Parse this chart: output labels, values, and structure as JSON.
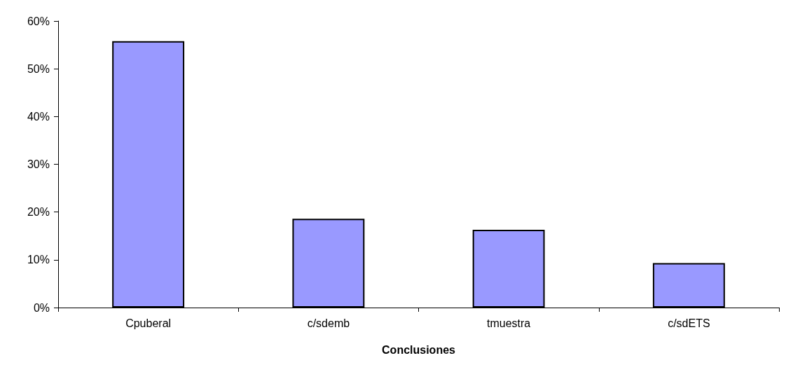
{
  "chart_data": {
    "type": "bar",
    "xlabel": "Conclusiones",
    "categories": [
      "Cpuberal",
      "c/sdemb",
      "tmuestra",
      "c/sdETS"
    ],
    "values": [
      55.8,
      18.6,
      16.3,
      9.3
    ],
    "color": "#9999ff",
    "ylim": [
      0,
      60
    ],
    "yticks": [
      {
        "value": 0,
        "label": "0%"
      },
      {
        "value": 10,
        "label": "10%"
      },
      {
        "value": 20,
        "label": "20%"
      },
      {
        "value": 30,
        "label": "30%"
      },
      {
        "value": 40,
        "label": "40%"
      },
      {
        "value": 50,
        "label": "50%"
      },
      {
        "value": 60,
        "label": "60%"
      }
    ],
    "grid": false
  }
}
